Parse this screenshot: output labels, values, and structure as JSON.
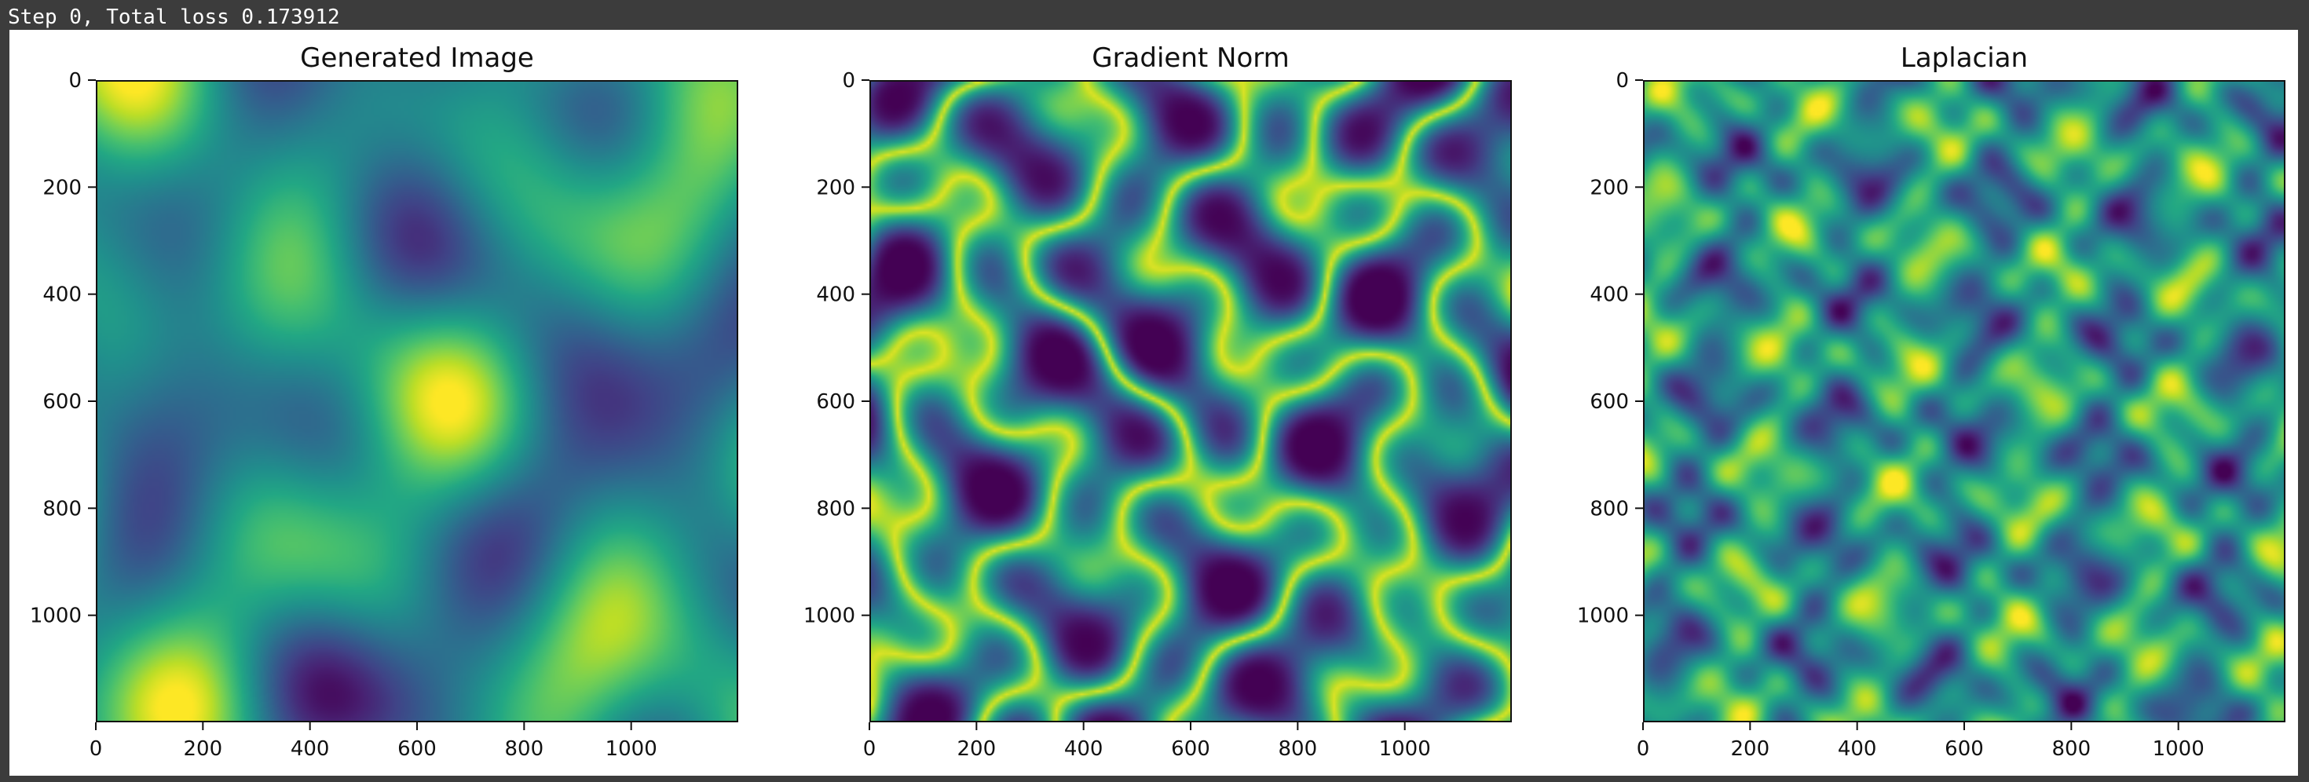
{
  "status": {
    "text": "Step 0, Total loss 0.173912"
  },
  "figure": {
    "panels": [
      {
        "title": "Generated Image",
        "colormap": "viridis",
        "style": "smooth",
        "x_ticks": [
          "0",
          "200",
          "400",
          "600",
          "800",
          "1000"
        ],
        "y_ticks": [
          "0",
          "200",
          "400",
          "600",
          "800",
          "1000"
        ]
      },
      {
        "title": "Gradient Norm",
        "colormap": "viridis",
        "style": "ridged",
        "x_ticks": [
          "0",
          "200",
          "400",
          "600",
          "800",
          "1000"
        ],
        "y_ticks": [
          "0",
          "200",
          "400",
          "600",
          "800",
          "1000"
        ]
      },
      {
        "title": "Laplacian",
        "colormap": "viridis",
        "style": "fine",
        "x_ticks": [
          "0",
          "200",
          "400",
          "600",
          "800",
          "1000"
        ],
        "y_ticks": [
          "0",
          "200",
          "400",
          "600",
          "800",
          "1000"
        ]
      }
    ]
  },
  "chart_data": [
    {
      "type": "heatmap",
      "title": "Generated Image",
      "xlim": [
        0,
        1200
      ],
      "ylim": [
        1200,
        0
      ],
      "x_tick_values": [
        0,
        200,
        400,
        600,
        800,
        1000
      ],
      "y_tick_values": [
        0,
        200,
        400,
        600,
        800,
        1000
      ],
      "colormap": "viridis",
      "grid": false,
      "legend": "none"
    },
    {
      "type": "heatmap",
      "title": "Gradient Norm",
      "xlim": [
        0,
        1200
      ],
      "ylim": [
        1200,
        0
      ],
      "x_tick_values": [
        0,
        200,
        400,
        600,
        800,
        1000
      ],
      "y_tick_values": [
        0,
        200,
        400,
        600,
        800,
        1000
      ],
      "colormap": "viridis",
      "grid": false,
      "legend": "none"
    },
    {
      "type": "heatmap",
      "title": "Laplacian",
      "xlim": [
        0,
        1200
      ],
      "ylim": [
        1200,
        0
      ],
      "x_tick_values": [
        0,
        200,
        400,
        600,
        800,
        1000
      ],
      "y_tick_values": [
        0,
        200,
        400,
        600,
        800,
        1000
      ],
      "colormap": "viridis",
      "grid": false,
      "legend": "none"
    }
  ]
}
